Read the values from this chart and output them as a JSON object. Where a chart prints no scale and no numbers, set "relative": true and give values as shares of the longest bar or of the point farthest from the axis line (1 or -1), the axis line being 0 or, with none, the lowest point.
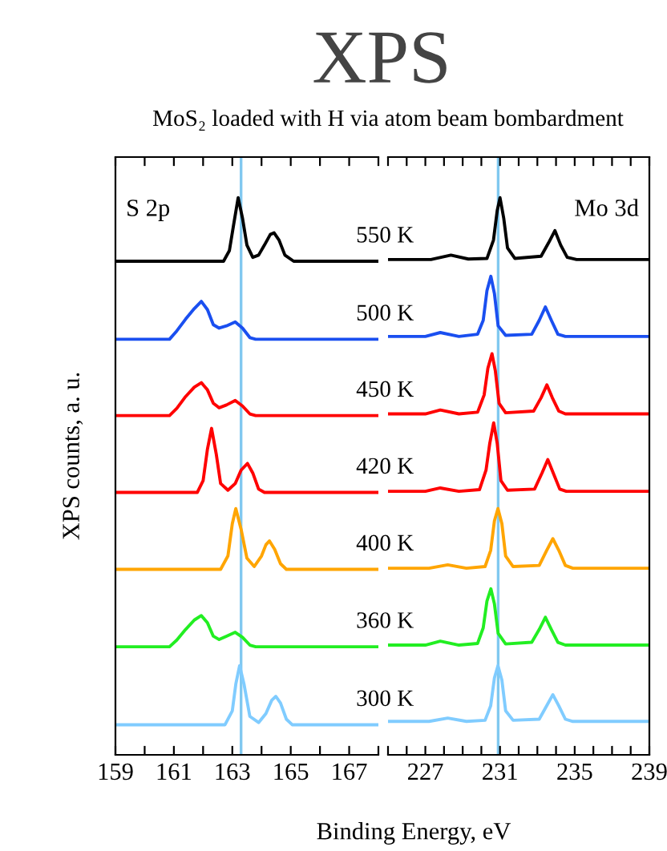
{
  "chart_data": [
    {
      "type": "line",
      "title": "XPS",
      "subtitle": "MoS₂ loaded with H via atom beam bombardment",
      "ylabel": "XPS counts, a. u.",
      "relative": true,
      "annotations": [
        "S 2p"
      ],
      "xlim": [
        159,
        168
      ],
      "xticks": [
        159,
        {
          "value": 160,
          "label": null
        },
        161,
        {
          "value": 162,
          "label": null
        },
        163,
        {
          "value": 164,
          "label": null
        },
        165,
        {
          "value": 166,
          "label": null
        },
        167,
        {
          "value": 168,
          "label": null
        }
      ],
      "ref_lines": [
        {
          "axis": "x",
          "value": 163.3,
          "color": "#80c8f0"
        }
      ],
      "series": [
        {
          "name": "550 K",
          "color": "#000000",
          "x": [
            159,
            162.7,
            162.9,
            163.05,
            163.2,
            163.35,
            163.5,
            163.7,
            163.9,
            164.1,
            164.3,
            164.43,
            164.6,
            164.8,
            165.1,
            168
          ],
          "values": [
            0.886,
            0.886,
            0.905,
            0.953,
            1.0,
            0.963,
            0.915,
            0.893,
            0.897,
            0.915,
            0.934,
            0.937,
            0.924,
            0.897,
            0.886,
            0.886
          ]
        },
        {
          "name": "500 K",
          "color": "#1a4ff0",
          "x": [
            159,
            160.85,
            161.1,
            161.4,
            161.7,
            161.94,
            162.15,
            162.35,
            162.55,
            162.8,
            163.1,
            163.35,
            163.6,
            163.8,
            168
          ],
          "values": [
            0.746,
            0.746,
            0.761,
            0.782,
            0.801,
            0.814,
            0.799,
            0.772,
            0.766,
            0.77,
            0.777,
            0.766,
            0.749,
            0.746,
            0.746
          ]
        },
        {
          "name": "450 K",
          "color": "#ff0000",
          "x": [
            159,
            160.85,
            161.1,
            161.4,
            161.7,
            161.94,
            162.15,
            162.35,
            162.55,
            162.8,
            163.1,
            163.35,
            163.6,
            163.8,
            168
          ],
          "values": [
            0.609,
            0.609,
            0.622,
            0.643,
            0.66,
            0.668,
            0.655,
            0.631,
            0.623,
            0.628,
            0.636,
            0.626,
            0.612,
            0.609,
            0.609
          ]
        },
        {
          "name": "420 K",
          "color": "#ff0000",
          "x": [
            159,
            161.8,
            162.0,
            162.15,
            162.29,
            162.45,
            162.6,
            162.85,
            163.1,
            163.3,
            163.52,
            163.7,
            163.9,
            164.1,
            168
          ],
          "values": [
            0.471,
            0.471,
            0.492,
            0.549,
            0.586,
            0.54,
            0.487,
            0.475,
            0.487,
            0.511,
            0.523,
            0.506,
            0.477,
            0.471,
            0.471
          ]
        },
        {
          "name": "400 K",
          "color": "#ffa500",
          "x": [
            159,
            162.6,
            162.85,
            163.0,
            163.12,
            163.3,
            163.5,
            163.75,
            164.0,
            164.15,
            164.27,
            164.45,
            164.65,
            164.85,
            168
          ],
          "values": [
            0.333,
            0.333,
            0.357,
            0.415,
            0.442,
            0.405,
            0.353,
            0.338,
            0.357,
            0.377,
            0.384,
            0.369,
            0.343,
            0.333,
            0.333
          ]
        },
        {
          "name": "360 K",
          "color": "#22ee22",
          "x": [
            159,
            160.85,
            161.1,
            161.4,
            161.7,
            161.94,
            162.15,
            162.35,
            162.55,
            162.8,
            163.1,
            163.35,
            163.6,
            163.8,
            168
          ],
          "values": [
            0.194,
            0.194,
            0.206,
            0.225,
            0.242,
            0.25,
            0.237,
            0.213,
            0.207,
            0.213,
            0.22,
            0.211,
            0.197,
            0.194,
            0.194
          ]
        },
        {
          "name": "300 K",
          "color": "#80ccff",
          "x": [
            159,
            162.75,
            163.0,
            163.12,
            163.25,
            163.4,
            163.6,
            163.9,
            164.15,
            164.35,
            164.49,
            164.65,
            164.85,
            165.05,
            168
          ],
          "values": [
            0.054,
            0.054,
            0.079,
            0.127,
            0.16,
            0.127,
            0.069,
            0.058,
            0.074,
            0.098,
            0.105,
            0.093,
            0.064,
            0.054,
            0.054
          ]
        }
      ]
    },
    {
      "type": "line",
      "xlabel": "Binding Energy, eV",
      "relative": true,
      "annotations": [
        "Mo 3d"
      ],
      "xlim": [
        225,
        239
      ],
      "xticks": [
        {
          "value": 225,
          "label": null
        },
        {
          "value": 226,
          "label": null
        },
        227,
        {
          "value": 228,
          "label": null
        },
        {
          "value": 229,
          "label": null
        },
        {
          "value": 230,
          "label": null
        },
        231,
        {
          "value": 232,
          "label": null
        },
        {
          "value": 233,
          "label": null
        },
        {
          "value": 234,
          "label": null
        },
        235,
        {
          "value": 236,
          "label": null
        },
        {
          "value": 237,
          "label": null
        },
        {
          "value": 238,
          "label": null
        },
        239
      ],
      "ref_lines": [
        {
          "axis": "x",
          "value": 230.9,
          "color": "#80c8f0"
        }
      ],
      "series": [
        {
          "color": "#000000",
          "x": [
            225,
            227.3,
            228.37,
            229.3,
            230.3,
            230.65,
            230.85,
            231.0,
            231.2,
            231.4,
            231.8,
            233.2,
            233.6,
            233.94,
            234.25,
            234.6,
            235.1,
            239
          ],
          "values": [
            0.889,
            0.889,
            0.897,
            0.89,
            0.891,
            0.924,
            0.977,
            1.0,
            0.963,
            0.91,
            0.891,
            0.895,
            0.919,
            0.941,
            0.915,
            0.893,
            0.889,
            0.889
          ]
        },
        {
          "color": "#1a4ff0",
          "x": [
            225,
            227.0,
            227.8,
            228.8,
            229.8,
            230.1,
            230.3,
            230.51,
            230.7,
            230.9,
            231.3,
            232.7,
            233.1,
            233.43,
            233.75,
            234.1,
            234.5,
            239
          ],
          "values": [
            0.751,
            0.751,
            0.758,
            0.751,
            0.755,
            0.78,
            0.833,
            0.859,
            0.828,
            0.77,
            0.753,
            0.755,
            0.78,
            0.804,
            0.78,
            0.755,
            0.751,
            0.751
          ]
        },
        {
          "color": "#ff0000",
          "x": [
            225,
            227.0,
            227.8,
            228.8,
            229.8,
            230.15,
            230.35,
            230.57,
            230.75,
            230.95,
            231.3,
            232.8,
            233.2,
            233.51,
            233.8,
            234.15,
            234.5,
            239
          ],
          "values": [
            0.612,
            0.612,
            0.619,
            0.612,
            0.615,
            0.646,
            0.694,
            0.72,
            0.689,
            0.631,
            0.614,
            0.617,
            0.641,
            0.664,
            0.641,
            0.617,
            0.612,
            0.612
          ]
        },
        {
          "color": "#ff0000",
          "x": [
            225,
            227.0,
            227.8,
            228.8,
            229.9,
            230.25,
            230.45,
            230.66,
            230.85,
            231.05,
            231.4,
            232.85,
            233.25,
            233.56,
            233.85,
            234.2,
            234.55,
            239
          ],
          "values": [
            0.473,
            0.473,
            0.479,
            0.473,
            0.476,
            0.511,
            0.559,
            0.596,
            0.559,
            0.492,
            0.475,
            0.477,
            0.506,
            0.53,
            0.506,
            0.477,
            0.473,
            0.473
          ]
        },
        {
          "color": "#ffa500",
          "x": [
            225,
            227.2,
            228.2,
            229.2,
            230.2,
            230.5,
            230.7,
            230.89,
            231.1,
            231.3,
            231.7,
            233.1,
            233.5,
            233.83,
            234.15,
            234.5,
            234.9,
            239
          ],
          "values": [
            0.335,
            0.335,
            0.341,
            0.335,
            0.338,
            0.367,
            0.42,
            0.442,
            0.415,
            0.357,
            0.338,
            0.34,
            0.367,
            0.388,
            0.367,
            0.34,
            0.335,
            0.335
          ]
        },
        {
          "color": "#22ee22",
          "x": [
            225,
            227.0,
            227.8,
            228.8,
            229.8,
            230.1,
            230.3,
            230.51,
            230.7,
            230.9,
            231.3,
            232.7,
            233.1,
            233.43,
            233.75,
            234.1,
            234.5,
            239
          ],
          "values": [
            0.197,
            0.197,
            0.204,
            0.197,
            0.2,
            0.228,
            0.276,
            0.298,
            0.271,
            0.218,
            0.199,
            0.202,
            0.225,
            0.247,
            0.225,
            0.202,
            0.197,
            0.197
          ]
        },
        {
          "color": "#80ccff",
          "x": [
            225,
            227.2,
            228.2,
            229.2,
            230.2,
            230.5,
            230.7,
            230.89,
            231.1,
            231.3,
            231.7,
            233.1,
            233.5,
            233.83,
            234.15,
            234.5,
            234.9,
            239
          ],
          "values": [
            0.06,
            0.06,
            0.066,
            0.06,
            0.062,
            0.088,
            0.138,
            0.16,
            0.134,
            0.079,
            0.062,
            0.064,
            0.088,
            0.108,
            0.088,
            0.064,
            0.06,
            0.06
          ]
        }
      ]
    }
  ]
}
